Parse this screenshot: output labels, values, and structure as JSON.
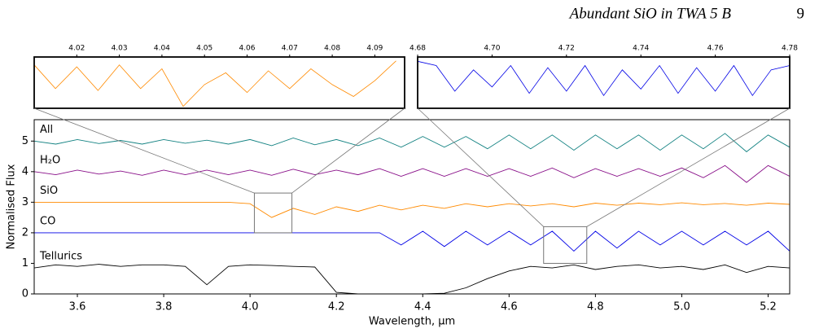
{
  "header": {
    "title": "Abundant SiO in TWA 5 B",
    "page": "9"
  },
  "chart_data": [
    {
      "type": "line",
      "xlabel": "Wavelength, μm",
      "ylabel": "Normalised Flux",
      "xlim": [
        3.5,
        5.25
      ],
      "ylim": [
        0,
        5.7
      ],
      "xticks": [
        3.6,
        3.8,
        {
          "value": 4,
          "label": "4.0"
        },
        4.2,
        4.4,
        4.6,
        4.8,
        {
          "value": 5,
          "label": "5.0"
        },
        5.2
      ],
      "yticks": [
        0,
        1,
        2,
        3,
        4,
        5
      ],
      "x": [
        3.5,
        3.55,
        3.6,
        3.65,
        3.7,
        3.75,
        3.8,
        3.85,
        3.9,
        3.95,
        4.0,
        4.05,
        4.1,
        4.15,
        4.2,
        4.25,
        4.3,
        4.35,
        4.4,
        4.45,
        4.5,
        4.55,
        4.6,
        4.65,
        4.7,
        4.75,
        4.8,
        4.85,
        4.9,
        4.95,
        5.0,
        5.05,
        5.1,
        5.15,
        5.2,
        5.25
      ],
      "series": [
        {
          "name": "All",
          "color": "#138282",
          "values": [
            5.0,
            4.9,
            5.05,
            4.92,
            5.02,
            4.9,
            5.05,
            4.93,
            5.03,
            4.9,
            5.05,
            4.85,
            5.1,
            4.88,
            5.05,
            4.85,
            5.1,
            4.8,
            5.15,
            4.8,
            5.15,
            4.75,
            5.2,
            4.75,
            5.2,
            4.7,
            5.2,
            4.75,
            5.2,
            4.7,
            5.2,
            4.75,
            5.25,
            4.65,
            5.2,
            4.8
          ]
        },
        {
          "name": "H₂O",
          "color": "#880e88",
          "values": [
            4.0,
            3.9,
            4.05,
            3.92,
            4.02,
            3.88,
            4.05,
            3.9,
            4.05,
            3.9,
            4.05,
            3.88,
            4.08,
            3.9,
            4.05,
            3.9,
            4.1,
            3.85,
            4.1,
            3.85,
            4.1,
            3.85,
            4.1,
            3.85,
            4.12,
            3.8,
            4.1,
            3.85,
            4.1,
            3.85,
            4.12,
            3.8,
            4.2,
            3.65,
            4.2,
            3.85
          ]
        },
        {
          "name": "SiO",
          "color": "#ff8a00",
          "values": [
            3.0,
            3.0,
            3.0,
            3.0,
            3.0,
            3.0,
            3.0,
            3.0,
            3.0,
            3.0,
            2.95,
            2.5,
            2.8,
            2.6,
            2.85,
            2.7,
            2.9,
            2.75,
            2.9,
            2.8,
            2.95,
            2.85,
            2.95,
            2.88,
            2.95,
            2.85,
            2.97,
            2.9,
            2.97,
            2.92,
            2.98,
            2.92,
            2.96,
            2.9,
            2.97,
            2.93
          ]
        },
        {
          "name": "CO",
          "color": "#0000e6",
          "values": [
            2.0,
            2.0,
            2.0,
            2.0,
            2.0,
            2.0,
            2.0,
            2.0,
            2.0,
            2.0,
            2.0,
            2.0,
            2.0,
            2.0,
            2.0,
            2.0,
            2.0,
            1.6,
            2.05,
            1.55,
            2.05,
            1.6,
            2.05,
            1.6,
            2.05,
            1.4,
            2.05,
            1.5,
            2.05,
            1.6,
            2.05,
            1.6,
            2.05,
            1.6,
            2.05,
            1.4
          ]
        },
        {
          "name": "Tellurics",
          "color": "#000000",
          "values": [
            0.85,
            0.95,
            0.9,
            0.97,
            0.9,
            0.95,
            0.95,
            0.9,
            0.3,
            0.9,
            0.95,
            0.93,
            0.9,
            0.88,
            0.05,
            0,
            0,
            0,
            0,
            0.02,
            0.2,
            0.5,
            0.75,
            0.9,
            0.85,
            0.95,
            0.8,
            0.9,
            0.95,
            0.85,
            0.9,
            0.8,
            0.95,
            0.7,
            0.9,
            0.85
          ]
        }
      ]
    },
    {
      "type": "line",
      "xlim": [
        4.01,
        4.097
      ],
      "ylim": [
        2,
        3.3
      ],
      "xticks": [
        4.02,
        4.03,
        4.04,
        4.05,
        4.06,
        4.07,
        4.08,
        4.09
      ],
      "x": [
        4.01,
        4.015,
        4.02,
        4.025,
        4.03,
        4.035,
        4.04,
        4.045,
        4.05,
        4.055,
        4.06,
        4.065,
        4.07,
        4.075,
        4.08,
        4.085,
        4.09,
        4.095
      ],
      "series": [
        {
          "color": "#ff8a00",
          "values": [
            3.1,
            2.5,
            3.05,
            2.45,
            3.1,
            2.5,
            3.0,
            2.05,
            2.6,
            2.9,
            2.4,
            2.95,
            2.5,
            3.0,
            2.6,
            2.3,
            2.7,
            3.2
          ]
        }
      ]
    },
    {
      "type": "line",
      "xlim": [
        4.68,
        4.78
      ],
      "ylim": [
        1,
        2.2
      ],
      "xticks": [
        4.68,
        {
          "value": 4.7,
          "label": "4.70"
        },
        4.72,
        4.74,
        4.76,
        4.78
      ],
      "x": [
        4.68,
        4.685,
        4.69,
        4.695,
        4.7,
        4.705,
        4.71,
        4.715,
        4.72,
        4.725,
        4.73,
        4.735,
        4.74,
        4.745,
        4.75,
        4.755,
        4.76,
        4.765,
        4.77,
        4.775,
        4.78
      ],
      "series": [
        {
          "color": "#0000e6",
          "values": [
            2.1,
            2.0,
            1.4,
            1.9,
            1.5,
            2.0,
            1.35,
            1.95,
            1.4,
            2.0,
            1.3,
            1.9,
            1.45,
            2.0,
            1.35,
            1.95,
            1.4,
            2.0,
            1.3,
            1.9,
            2.0
          ]
        }
      ]
    }
  ]
}
